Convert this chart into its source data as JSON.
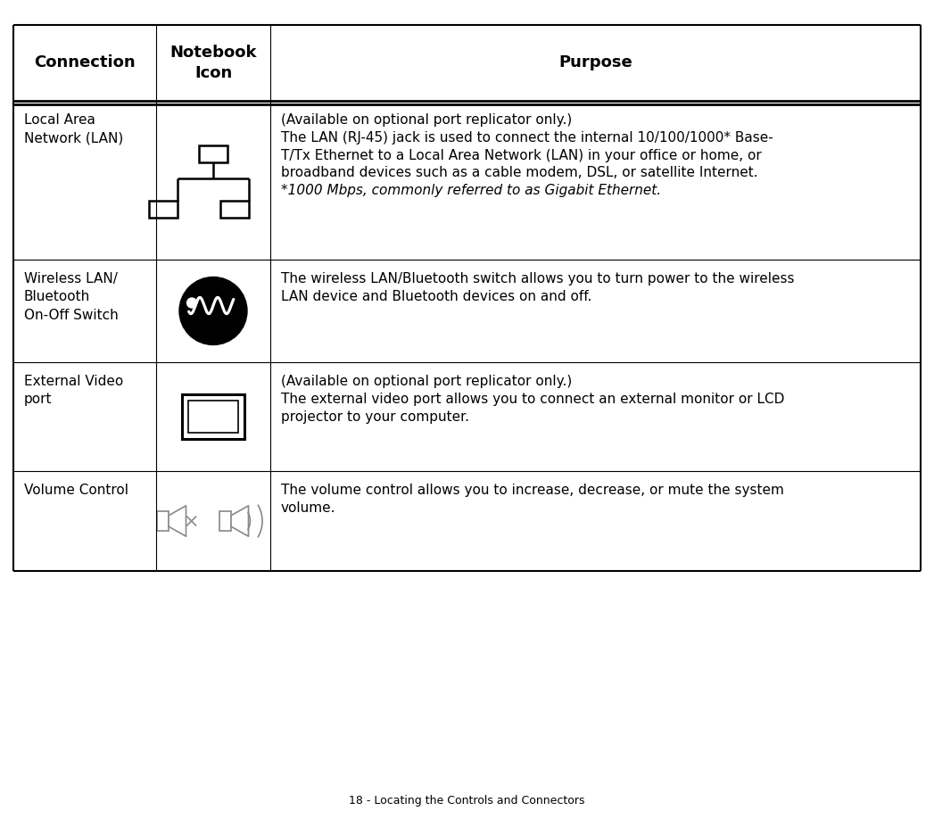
{
  "title": "18 - Locating the Controls and Connectors",
  "col_headers": [
    "Connection",
    "Notebook\nIcon",
    "Purpose"
  ],
  "bg_color": "#ffffff",
  "text_color": "#000000",
  "header_font_size": 13,
  "body_font_size": 11.0,
  "footer_font_size": 9,
  "rows": [
    {
      "connection": "Local Area\nNetwork (LAN)",
      "purpose_normal": "(Available on optional port replicator only.)\nThe LAN (RJ-45) jack is used to connect the internal 10/100/1000* Base-\nT/Tx Ethernet to a Local Area Network (LAN) in your office or home, or\nbroadband devices such as a cable modem, DSL, or satellite Internet.",
      "purpose_italic": "*1000 Mbps, commonly referred to as Gigabit Ethernet.",
      "icon": "lan"
    },
    {
      "connection": "Wireless LAN/\nBluetooth\nOn-Off Switch",
      "purpose_normal": "The wireless LAN/Bluetooth switch allows you to turn power to the wireless\nLAN device and Bluetooth devices on and off.",
      "purpose_italic": "",
      "icon": "wireless"
    },
    {
      "connection": "External Video\nport",
      "purpose_normal": "(Available on optional port replicator only.)\nThe external video port allows you to connect an external monitor or LCD\nprojector to your computer.",
      "purpose_italic": "",
      "icon": "monitor"
    },
    {
      "connection": "Volume Control",
      "purpose_normal": "The volume control allows you to increase, decrease, or mute the system\nvolume.",
      "purpose_italic": "",
      "icon": "volume"
    }
  ]
}
